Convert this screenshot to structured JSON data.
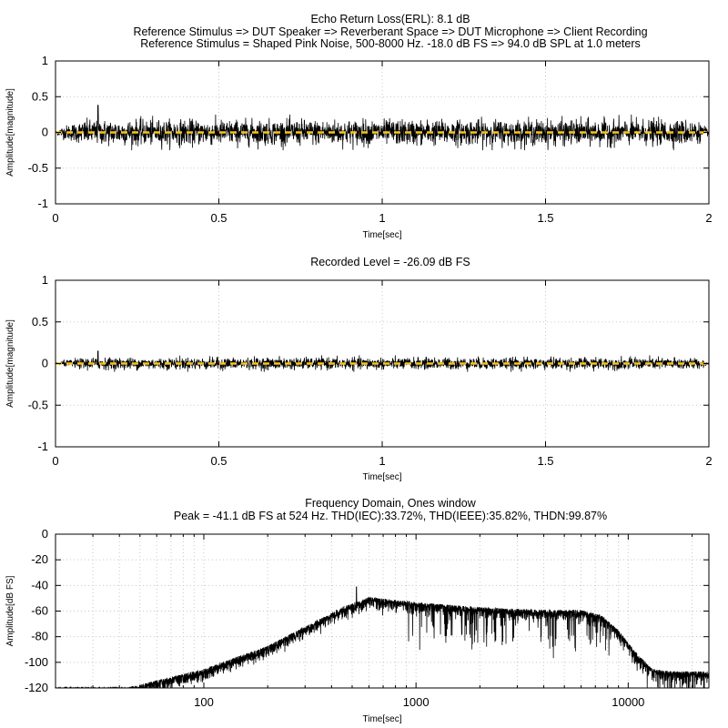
{
  "chart_data": [
    {
      "type": "line",
      "title_lines": [
        "Echo Return Loss(ERL): 8.1 dB",
        "Reference Stimulus => DUT Speaker => Reverberant Space => DUT Microphone => Client Recording",
        "Reference Stimulus = Shaped Pink Noise, 500-8000 Hz. -18.0 dB FS => 94.0 dB SPL at 1.0 meters"
      ],
      "xlabel": "Time[sec]",
      "ylabel": "Amplitude[magnitude]",
      "xlim": [
        0,
        2
      ],
      "ylim": [
        -1,
        1
      ],
      "xticks": [
        0,
        0.5,
        1,
        1.5,
        2
      ],
      "xtick_labels": [
        "0",
        "0.5",
        "1",
        "1.5",
        "2"
      ],
      "yticks": [
        1,
        0.5,
        0,
        -0.5,
        -1
      ],
      "ytick_labels": [
        "1",
        "0.5",
        "0",
        "-0.5",
        "-1"
      ],
      "grid": true,
      "series": [
        {
          "kind": "noise-waveform",
          "color": "#000000",
          "envelope_amplitude": 0.2,
          "peak_amplitude": 0.38,
          "peak_time": 0.13,
          "taper_end_sec": 0.1,
          "taper_start_sec": 1.95
        },
        {
          "kind": "dashed-zero-line",
          "color": "#f5c518",
          "y": 0
        }
      ]
    },
    {
      "type": "line",
      "title_lines": [
        "Recorded Level = -26.09 dB FS"
      ],
      "xlabel": "Time[sec]",
      "ylabel": "Amplitude[magnitude]",
      "xlim": [
        0,
        2
      ],
      "ylim": [
        -1,
        1
      ],
      "xticks": [
        0,
        0.5,
        1,
        1.5,
        2
      ],
      "xtick_labels": [
        "0",
        "0.5",
        "1",
        "1.5",
        "2"
      ],
      "yticks": [
        1,
        0.5,
        0,
        -0.5,
        -1
      ],
      "ytick_labels": [
        "1",
        "0.5",
        "0",
        "-0.5",
        "-1"
      ],
      "grid": true,
      "series": [
        {
          "kind": "noise-waveform",
          "color": "#000000",
          "envelope_amplitude": 0.08,
          "peak_amplitude": 0.15,
          "peak_time": 0.13,
          "taper_end_sec": 0.1,
          "taper_start_sec": 1.95
        },
        {
          "kind": "dashed-zero-line",
          "color": "#f5c518",
          "y": 0
        }
      ]
    },
    {
      "type": "line",
      "title_lines": [
        "Frequency Domain, Ones window",
        "Peak = -41.1 dB FS at 524 Hz. THD(IEC):33.72%, THD(IEEE):35.82%, THDN:99.87%"
      ],
      "xlabel": "Time[sec]",
      "ylabel": "Amplitude[dB FS]",
      "xscale": "log",
      "xlim": [
        20,
        24000
      ],
      "ylim": [
        -120,
        0
      ],
      "xticks": [
        100,
        1000,
        10000
      ],
      "xtick_labels": [
        "100",
        "1000",
        "10000"
      ],
      "yticks": [
        0,
        -20,
        -40,
        -60,
        -80,
        -100,
        -120
      ],
      "ytick_labels": [
        "0",
        "-20",
        "-40",
        "-60",
        "-80",
        "-100",
        "-120"
      ],
      "grid": true,
      "series": [
        {
          "kind": "spectrum",
          "color": "#000000",
          "profile_hz": [
            45,
            60,
            100,
            200,
            300,
            450,
            600,
            1000,
            2000,
            4000,
            6000,
            7500,
            9000,
            11000,
            13000,
            16000,
            24000
          ],
          "profile_db": [
            -122,
            -117,
            -108,
            -90,
            -75,
            -60,
            -52,
            -56,
            -60,
            -62,
            -62,
            -66,
            -78,
            -96,
            -108,
            -110,
            -110
          ],
          "peak_hz": 524,
          "peak_db": -41.1
        }
      ]
    }
  ]
}
